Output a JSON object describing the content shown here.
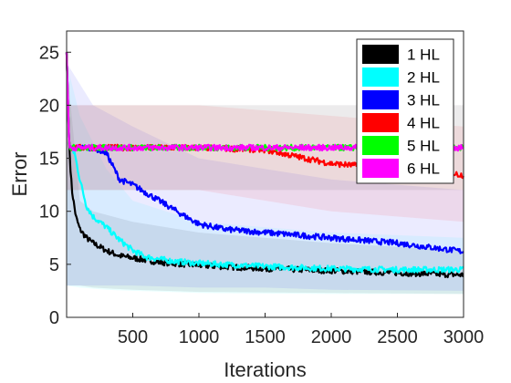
{
  "chart_data": {
    "type": "line",
    "title": "",
    "xlabel": "Iterations",
    "ylabel": "Error",
    "xlim": [
      0,
      3000
    ],
    "ylim": [
      0,
      27
    ],
    "x_ticks": [
      500,
      1000,
      1500,
      2000,
      2500,
      3000
    ],
    "y_ticks": [
      0,
      5,
      10,
      15,
      20,
      25
    ],
    "grid": false,
    "legend_position": "top-right",
    "shaded_band": "transparent band around each mean curve",
    "series": [
      {
        "name": "1 HL",
        "color": "#000000",
        "points": [
          [
            0,
            25
          ],
          [
            10,
            20
          ],
          [
            20,
            16
          ],
          [
            40,
            12
          ],
          [
            70,
            9.5
          ],
          [
            100,
            8.3
          ],
          [
            150,
            7.5
          ],
          [
            200,
            7
          ],
          [
            300,
            6.3
          ],
          [
            400,
            5.8
          ],
          [
            500,
            5.6
          ],
          [
            700,
            5.2
          ],
          [
            1000,
            4.9
          ],
          [
            1500,
            4.6
          ],
          [
            2000,
            4.4
          ],
          [
            2500,
            4.2
          ],
          [
            3000,
            4
          ]
        ],
        "band": [
          [
            0,
            3,
            24
          ],
          [
            100,
            3,
            11
          ],
          [
            200,
            2.8,
            10
          ],
          [
            500,
            2.6,
            9
          ],
          [
            1000,
            2.4,
            8
          ],
          [
            2000,
            2.3,
            7
          ],
          [
            3000,
            2.2,
            6.3
          ]
        ]
      },
      {
        "name": "2 HL",
        "color": "#00ffff",
        "points": [
          [
            0,
            25
          ],
          [
            20,
            16
          ],
          [
            60,
            15.5
          ],
          [
            100,
            13
          ],
          [
            150,
            10.5
          ],
          [
            200,
            9.5
          ],
          [
            300,
            8.5
          ],
          [
            400,
            7.3
          ],
          [
            500,
            6.3
          ],
          [
            600,
            5.7
          ],
          [
            800,
            5.3
          ],
          [
            1000,
            5.1
          ],
          [
            1500,
            4.8
          ],
          [
            2000,
            4.6
          ],
          [
            2500,
            4.5
          ],
          [
            3000,
            4.5
          ]
        ],
        "band": [
          [
            0,
            3,
            24
          ],
          [
            100,
            2.8,
            19
          ],
          [
            300,
            2.6,
            14
          ],
          [
            500,
            2.5,
            11
          ],
          [
            1000,
            2.3,
            9
          ],
          [
            2000,
            2.2,
            8
          ],
          [
            3000,
            2.2,
            7.5
          ]
        ]
      },
      {
        "name": "3 HL",
        "color": "#0000ff",
        "points": [
          [
            0,
            25
          ],
          [
            20,
            16
          ],
          [
            200,
            16
          ],
          [
            300,
            15.5
          ],
          [
            400,
            13
          ],
          [
            500,
            12.5
          ],
          [
            700,
            11
          ],
          [
            900,
            9.5
          ],
          [
            1000,
            8.8
          ],
          [
            1200,
            8.3
          ],
          [
            1500,
            8
          ],
          [
            2000,
            7.5
          ],
          [
            2500,
            7
          ],
          [
            3000,
            6.2
          ]
        ],
        "band": [
          [
            0,
            3,
            24
          ],
          [
            200,
            3,
            20
          ],
          [
            500,
            3,
            18
          ],
          [
            1000,
            2.8,
            15
          ],
          [
            1500,
            2.8,
            14
          ],
          [
            2000,
            2.6,
            13
          ],
          [
            3000,
            2.5,
            12
          ]
        ]
      },
      {
        "name": "4 HL",
        "color": "#ff0000",
        "points": [
          [
            0,
            25
          ],
          [
            20,
            16
          ],
          [
            1000,
            16
          ],
          [
            1500,
            15.8
          ],
          [
            1800,
            15
          ],
          [
            2000,
            14.5
          ],
          [
            2300,
            14.2
          ],
          [
            2600,
            14
          ],
          [
            2800,
            13.8
          ],
          [
            3000,
            13.4
          ]
        ],
        "band": [
          [
            0,
            12,
            20
          ],
          [
            1000,
            12,
            20
          ],
          [
            2000,
            10,
            19
          ],
          [
            3000,
            9,
            18
          ]
        ]
      },
      {
        "name": "5 HL",
        "color": "#00ff00",
        "points": [
          [
            0,
            25
          ],
          [
            20,
            16
          ],
          [
            500,
            16
          ],
          [
            1000,
            16
          ],
          [
            1500,
            16
          ],
          [
            2000,
            16
          ],
          [
            2500,
            16
          ],
          [
            3000,
            16
          ]
        ],
        "band": [
          [
            0,
            12,
            20
          ],
          [
            3000,
            12,
            20
          ]
        ]
      },
      {
        "name": "6 HL",
        "color": "#ff00ff",
        "points": [
          [
            0,
            25
          ],
          [
            20,
            16
          ],
          [
            500,
            16
          ],
          [
            1000,
            16
          ],
          [
            1500,
            16
          ],
          [
            2000,
            16
          ],
          [
            2500,
            16
          ],
          [
            3000,
            16
          ]
        ],
        "band": [
          [
            0,
            12,
            20
          ],
          [
            3000,
            12,
            20
          ]
        ]
      }
    ]
  }
}
